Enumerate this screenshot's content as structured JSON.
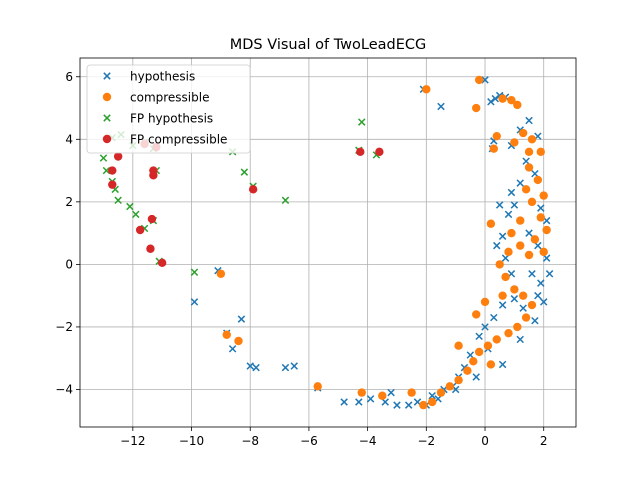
{
  "chart_data": {
    "type": "scatter",
    "title": "MDS Visual of TwoLeadECG",
    "xlabel": "",
    "ylabel": "",
    "xlim": [
      -13.8,
      3.1
    ],
    "ylim": [
      -5.2,
      6.6
    ],
    "xticks": [
      -12,
      -10,
      -8,
      -6,
      -4,
      -2,
      0,
      2
    ],
    "yticks": [
      -4,
      -2,
      0,
      2,
      4,
      6
    ],
    "xtick_labels": [
      "−12",
      "−10",
      "−8",
      "−6",
      "−4",
      "−2",
      "0",
      "2"
    ],
    "ytick_labels": [
      "−4",
      "−2",
      "0",
      "2",
      "4",
      "6"
    ],
    "grid": true,
    "legend_position": "top-left",
    "series": [
      {
        "name": "hypothesis",
        "marker": "x",
        "color": "#1f77b4",
        "points": [
          [
            -2.1,
            5.6
          ],
          [
            -1.5,
            5.05
          ],
          [
            0.0,
            5.9
          ],
          [
            0.2,
            5.2
          ],
          [
            0.35,
            5.3
          ],
          [
            0.5,
            5.4
          ],
          [
            0.7,
            5.35
          ],
          [
            0.3,
            3.95
          ],
          [
            0.25,
            3.7
          ],
          [
            0.9,
            3.8
          ],
          [
            1.2,
            4.3
          ],
          [
            1.5,
            4.6
          ],
          [
            1.8,
            4.1
          ],
          [
            1.4,
            3.3
          ],
          [
            1.7,
            2.9
          ],
          [
            1.2,
            2.6
          ],
          [
            0.9,
            2.3
          ],
          [
            0.5,
            1.9
          ],
          [
            0.8,
            1.6
          ],
          [
            1.0,
            1.9
          ],
          [
            1.9,
            1.8
          ],
          [
            2.1,
            1.4
          ],
          [
            1.5,
            1.0
          ],
          [
            1.8,
            0.6
          ],
          [
            2.1,
            0.2
          ],
          [
            0.6,
            0.9
          ],
          [
            0.4,
            0.6
          ],
          [
            0.7,
            0.2
          ],
          [
            0.9,
            -0.3
          ],
          [
            1.6,
            -0.3
          ],
          [
            1.9,
            -0.6
          ],
          [
            1.8,
            -1.0
          ],
          [
            1.3,
            -1.4
          ],
          [
            1.0,
            -1.1
          ],
          [
            0.6,
            -1.3
          ],
          [
            0.3,
            -1.7
          ],
          [
            0.0,
            -2.0
          ],
          [
            -0.2,
            -2.3
          ],
          [
            0.1,
            -2.7
          ],
          [
            -0.5,
            -2.9
          ],
          [
            -0.7,
            -3.3
          ],
          [
            -0.9,
            -3.6
          ],
          [
            -1.1,
            -3.9
          ],
          [
            -1.4,
            -4.0
          ],
          [
            -1.6,
            -4.3
          ],
          [
            -2.0,
            -4.5
          ],
          [
            -2.3,
            -4.4
          ],
          [
            -2.6,
            -4.5
          ],
          [
            -3.0,
            -4.5
          ],
          [
            -3.4,
            -4.4
          ],
          [
            -3.9,
            -4.3
          ],
          [
            -4.3,
            -4.4
          ],
          [
            -4.8,
            -4.4
          ],
          [
            -3.2,
            -4.1
          ],
          [
            -1.8,
            -4.2
          ],
          [
            -1.0,
            -4.0
          ],
          [
            -0.3,
            -3.6
          ],
          [
            0.6,
            -3.2
          ],
          [
            1.2,
            -2.4
          ],
          [
            1.7,
            -1.8
          ],
          [
            2.0,
            -1.2
          ],
          [
            2.2,
            -0.3
          ],
          [
            -6.8,
            -3.3
          ],
          [
            -6.5,
            -3.25
          ],
          [
            -7.8,
            -3.3
          ],
          [
            -8.0,
            -3.25
          ],
          [
            -8.6,
            -2.7
          ],
          [
            -8.8,
            -2.2
          ],
          [
            -8.3,
            -1.75
          ],
          [
            -9.9,
            -1.2
          ],
          [
            -9.1,
            -0.2
          ],
          [
            -5.7,
            -3.95
          ]
        ]
      },
      {
        "name": "compressible",
        "marker": "o",
        "color": "#ff7f0e",
        "points": [
          [
            -2.0,
            5.6
          ],
          [
            -0.2,
            5.9
          ],
          [
            0.6,
            5.3
          ],
          [
            0.9,
            5.25
          ],
          [
            1.1,
            5.1
          ],
          [
            0.4,
            4.1
          ],
          [
            0.3,
            3.7
          ],
          [
            1.3,
            4.2
          ],
          [
            1.6,
            4.0
          ],
          [
            1.9,
            3.6
          ],
          [
            1.5,
            3.1
          ],
          [
            1.8,
            2.7
          ],
          [
            2.0,
            2.2
          ],
          [
            1.6,
            2.0
          ],
          [
            1.9,
            1.5
          ],
          [
            2.1,
            1.1
          ],
          [
            1.7,
            0.8
          ],
          [
            2.0,
            0.4
          ],
          [
            1.5,
            0.3
          ],
          [
            1.2,
            0.6
          ],
          [
            0.8,
            0.4
          ],
          [
            0.5,
            0.0
          ],
          [
            0.7,
            -0.4
          ],
          [
            1.0,
            -0.8
          ],
          [
            1.3,
            -1.0
          ],
          [
            1.6,
            -1.3
          ],
          [
            1.4,
            -1.7
          ],
          [
            1.1,
            -2.0
          ],
          [
            0.8,
            -2.2
          ],
          [
            0.4,
            -2.4
          ],
          [
            0.1,
            -2.6
          ],
          [
            -0.2,
            -2.8
          ],
          [
            -0.4,
            -3.1
          ],
          [
            -0.6,
            -3.4
          ],
          [
            -0.9,
            -3.7
          ],
          [
            -1.2,
            -3.9
          ],
          [
            -1.5,
            -4.1
          ],
          [
            -1.8,
            -4.4
          ],
          [
            -2.1,
            -4.5
          ],
          [
            -2.5,
            -4.1
          ],
          [
            -3.5,
            -4.2
          ],
          [
            -4.2,
            -4.1
          ],
          [
            -5.7,
            -3.9
          ],
          [
            0.9,
            1.0
          ],
          [
            1.2,
            1.4
          ],
          [
            1.4,
            2.4
          ],
          [
            0.2,
            1.3
          ],
          [
            -0.3,
            -1.6
          ],
          [
            0.0,
            -1.2
          ],
          [
            0.6,
            -1.0
          ],
          [
            0.2,
            -3.2
          ],
          [
            -0.9,
            -2.6
          ],
          [
            -8.4,
            -2.45
          ],
          [
            -8.8,
            -2.25
          ],
          [
            -9.0,
            -0.3
          ],
          [
            -0.3,
            5.0
          ],
          [
            1.5,
            3.6
          ],
          [
            1.0,
            3.9
          ]
        ]
      },
      {
        "name": "FP hypothesis",
        "marker": "x",
        "color": "#2ca02c",
        "points": [
          [
            -13.0,
            3.4
          ],
          [
            -12.9,
            3.0
          ],
          [
            -12.6,
            2.4
          ],
          [
            -12.5,
            2.05
          ],
          [
            -12.1,
            1.85
          ],
          [
            -11.9,
            1.6
          ],
          [
            -11.6,
            1.15
          ],
          [
            -11.3,
            1.4
          ],
          [
            -11.1,
            0.1
          ],
          [
            -9.9,
            -0.25
          ],
          [
            -12.7,
            4.05
          ],
          [
            -12.4,
            4.15
          ],
          [
            -12.0,
            3.8
          ],
          [
            -11.6,
            3.9
          ],
          [
            -11.3,
            3.7
          ],
          [
            -11.2,
            3.0
          ],
          [
            -8.6,
            3.6
          ],
          [
            -8.2,
            2.95
          ],
          [
            -7.9,
            2.5
          ],
          [
            -6.8,
            2.05
          ],
          [
            -4.2,
            4.55
          ],
          [
            -3.7,
            3.5
          ],
          [
            -4.3,
            3.65
          ],
          [
            -12.7,
            2.65
          ]
        ]
      },
      {
        "name": "FP compressible",
        "marker": "o",
        "color": "#d62728",
        "points": [
          [
            -12.5,
            3.45
          ],
          [
            -12.7,
            3.0
          ],
          [
            -12.7,
            2.55
          ],
          [
            -11.3,
            3.0
          ],
          [
            -11.3,
            2.85
          ],
          [
            -11.35,
            1.45
          ],
          [
            -11.75,
            1.1
          ],
          [
            -11.4,
            0.5
          ],
          [
            -11.0,
            0.05
          ],
          [
            -7.9,
            2.4
          ],
          [
            -4.25,
            3.6
          ],
          [
            -3.6,
            3.6
          ],
          [
            -11.6,
            3.85
          ],
          [
            -11.2,
            3.75
          ]
        ]
      }
    ]
  }
}
